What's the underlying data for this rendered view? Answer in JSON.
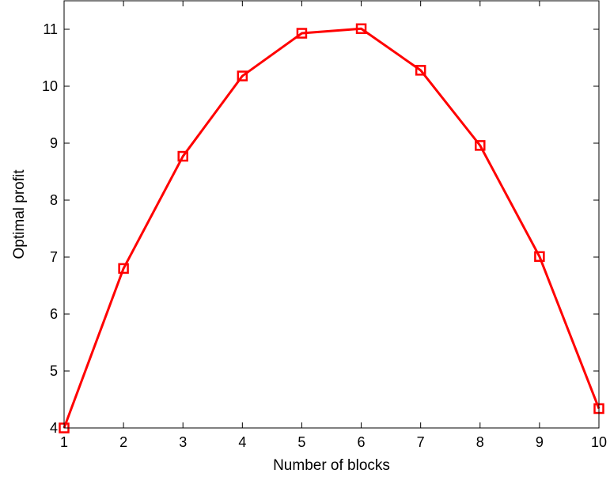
{
  "chart_data": {
    "type": "line",
    "title": "",
    "xlabel": "Number of blocks",
    "ylabel": "Optimal profit",
    "xlim": [
      1,
      10
    ],
    "ylim": [
      4,
      11.5
    ],
    "xticks": [
      1,
      2,
      3,
      4,
      5,
      6,
      7,
      8,
      9,
      10
    ],
    "yticks": [
      4,
      5,
      6,
      7,
      8,
      9,
      10,
      11
    ],
    "grid": false,
    "series": [
      {
        "color": "#ff0000",
        "marker": "square",
        "x": [
          1,
          2,
          3,
          4,
          5,
          6,
          7,
          8,
          9,
          10
        ],
        "y": [
          4.0,
          6.8,
          8.77,
          10.18,
          10.93,
          11.01,
          10.28,
          8.96,
          7.01,
          4.34
        ]
      }
    ]
  }
}
